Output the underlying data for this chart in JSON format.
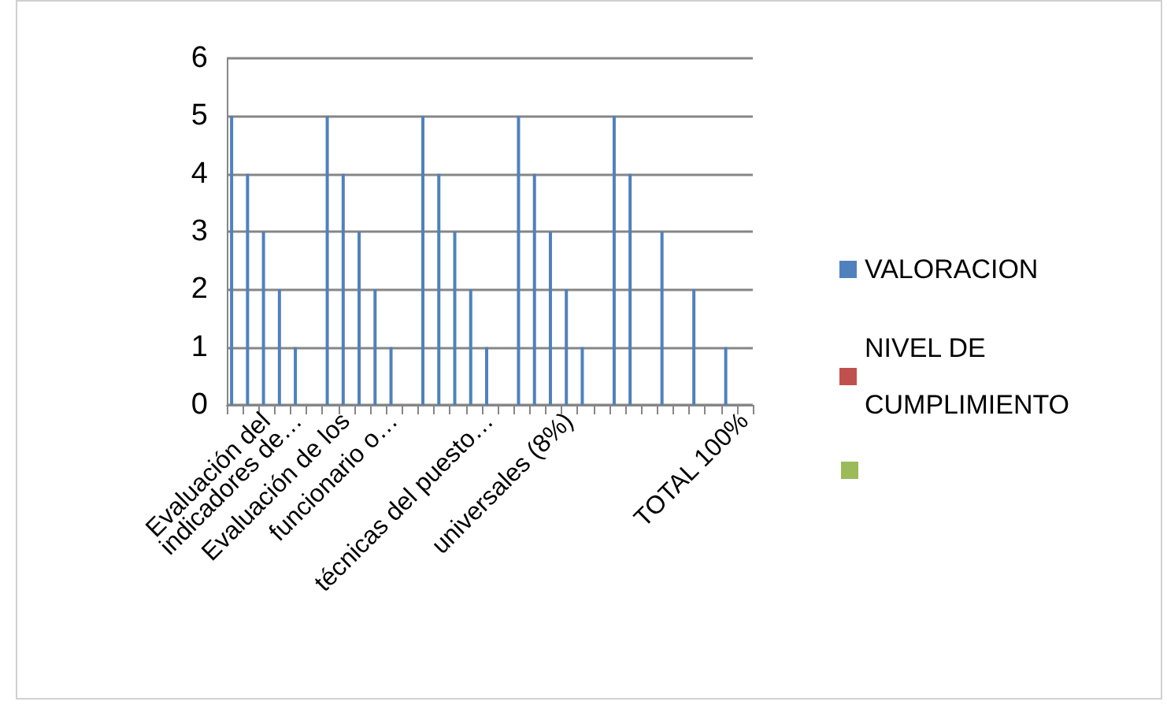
{
  "chart_data": {
    "type": "bar",
    "categories": [
      null,
      null,
      "Evaluación del",
      null,
      "indicadores de…",
      null,
      null,
      "Evaluación de los",
      null,
      null,
      "funcionario o…",
      null,
      null,
      null,
      null,
      null,
      "técnicas del puesto…",
      null,
      null,
      null,
      null,
      "universales (8%)",
      null,
      null,
      null,
      null,
      null,
      null,
      null,
      null,
      null,
      null,
      "TOTAL 100%"
    ],
    "series": [
      {
        "name": "VALORACION",
        "color": "#4f81bd",
        "values": [
          5,
          4,
          3,
          2,
          1,
          null,
          5,
          4,
          3,
          2,
          1,
          null,
          5,
          4,
          3,
          2,
          1,
          null,
          5,
          4,
          3,
          2,
          1,
          null,
          5,
          4,
          null,
          3,
          null,
          2,
          null,
          1,
          null
        ]
      },
      {
        "name": "NIVEL DE CUMPLIMIENTO",
        "color": "#c0504d",
        "values": [
          null,
          null,
          null,
          null,
          null,
          null,
          null,
          null,
          null,
          null,
          null,
          null,
          null,
          null,
          null,
          null,
          null,
          null,
          null,
          null,
          null,
          null,
          null,
          null,
          null,
          null,
          null,
          null,
          null,
          null,
          null,
          null,
          null
        ]
      },
      {
        "color": "#9bbb59",
        "values": [
          null,
          null,
          null,
          null,
          null,
          null,
          null,
          null,
          null,
          null,
          null,
          null,
          null,
          null,
          null,
          null,
          null,
          null,
          null,
          null,
          null,
          null,
          null,
          null,
          null,
          null,
          null,
          null,
          null,
          null,
          null,
          null,
          null
        ]
      }
    ],
    "ylim": [
      0,
      6
    ],
    "yticks": [
      0,
      1,
      2,
      3,
      4,
      5,
      6
    ],
    "grid": "y",
    "legend": "right"
  }
}
